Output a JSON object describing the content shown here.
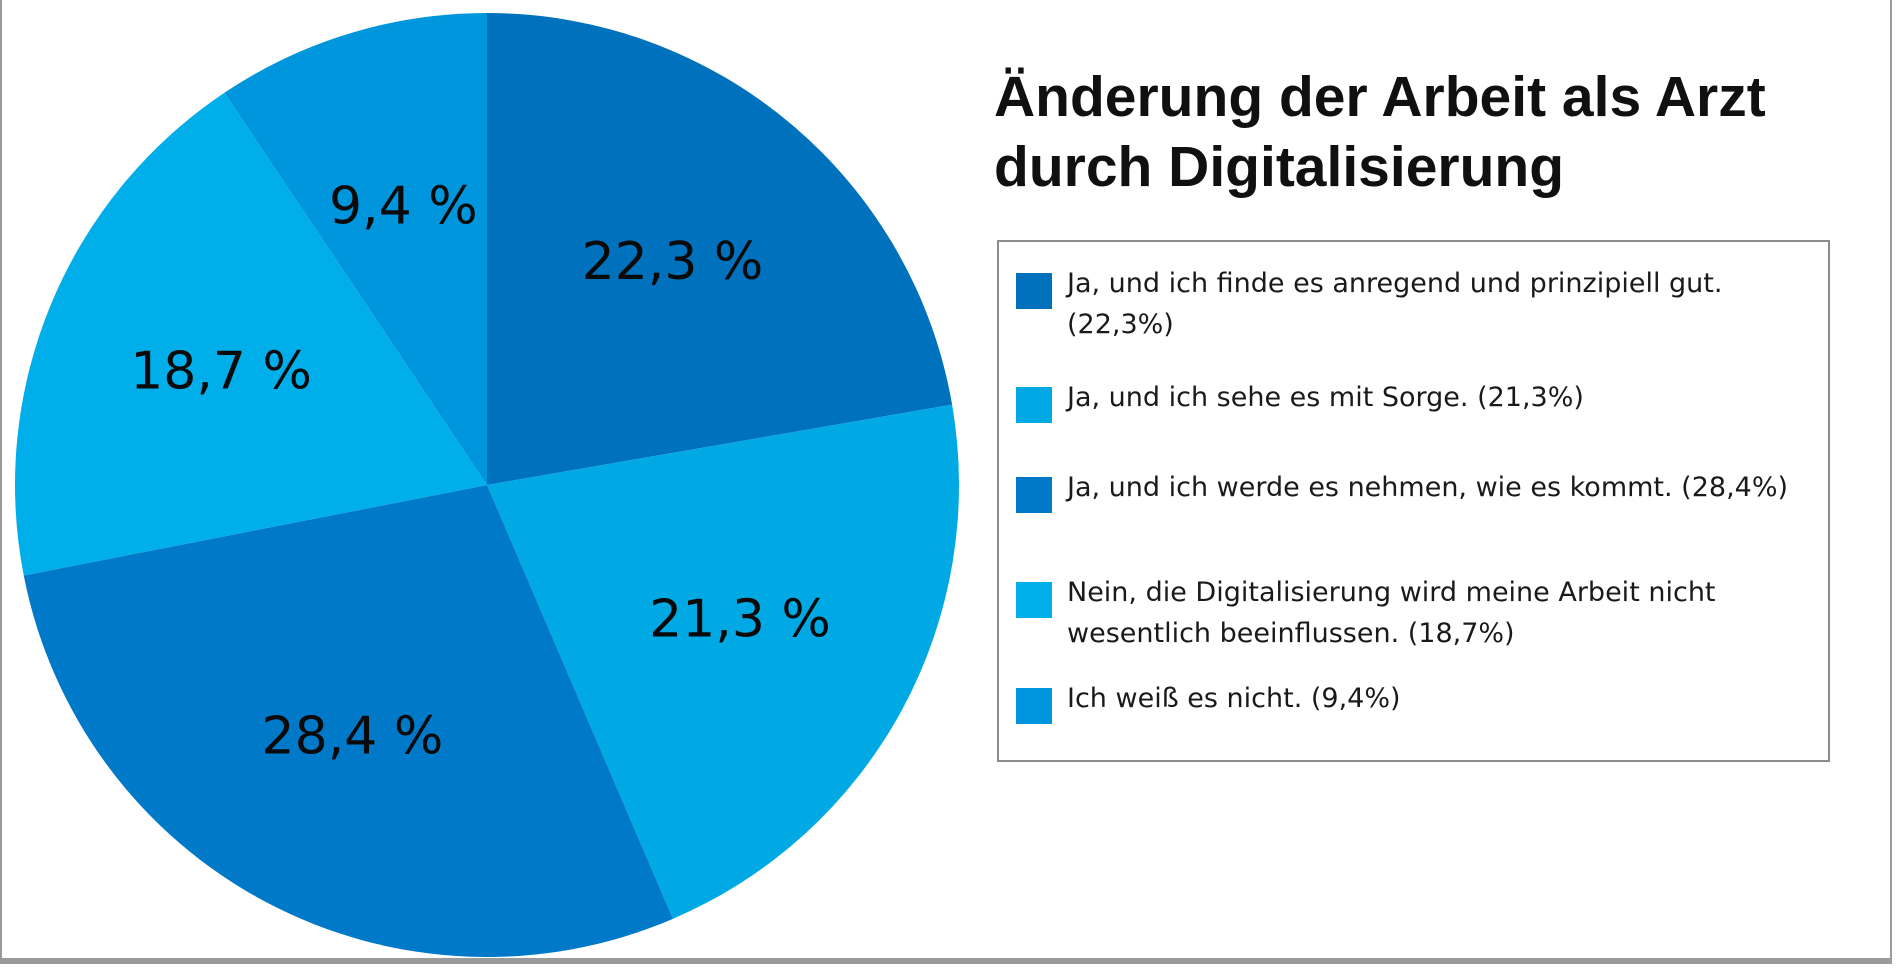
{
  "chart_data": {
    "type": "pie",
    "title": "Änderung der Arbeit als Arzt durch Digitalisierung",
    "legend_position": "right",
    "slices": [
      {
        "label": "Ja, und ich finde es anregend und prinzipiell gut. (22,3%)",
        "value": 22.3,
        "value_label": "22,3 %",
        "color": "#0071bd"
      },
      {
        "label": "Ja, und ich sehe es mit Sorge. (21,3%)",
        "value": 21.3,
        "value_label": "21,3 %",
        "color": "#00a9e4"
      },
      {
        "label": "Ja, und ich werde es nehmen, wie es kommt. (28,4%)",
        "value": 28.4,
        "value_label": "28,4 %",
        "color": "#0079c9"
      },
      {
        "label": "Nein, die Digitalisierung wird meine Arbeit nicht wesentlich beeinflussen. (18,7%)",
        "value": 18.7,
        "value_label": "18,7 %",
        "color": "#00aeea"
      },
      {
        "label": "Ich weiß es nicht. (9,4%)",
        "value": 9.4,
        "value_label": "9,4 %",
        "color": "#0096dd"
      }
    ]
  }
}
